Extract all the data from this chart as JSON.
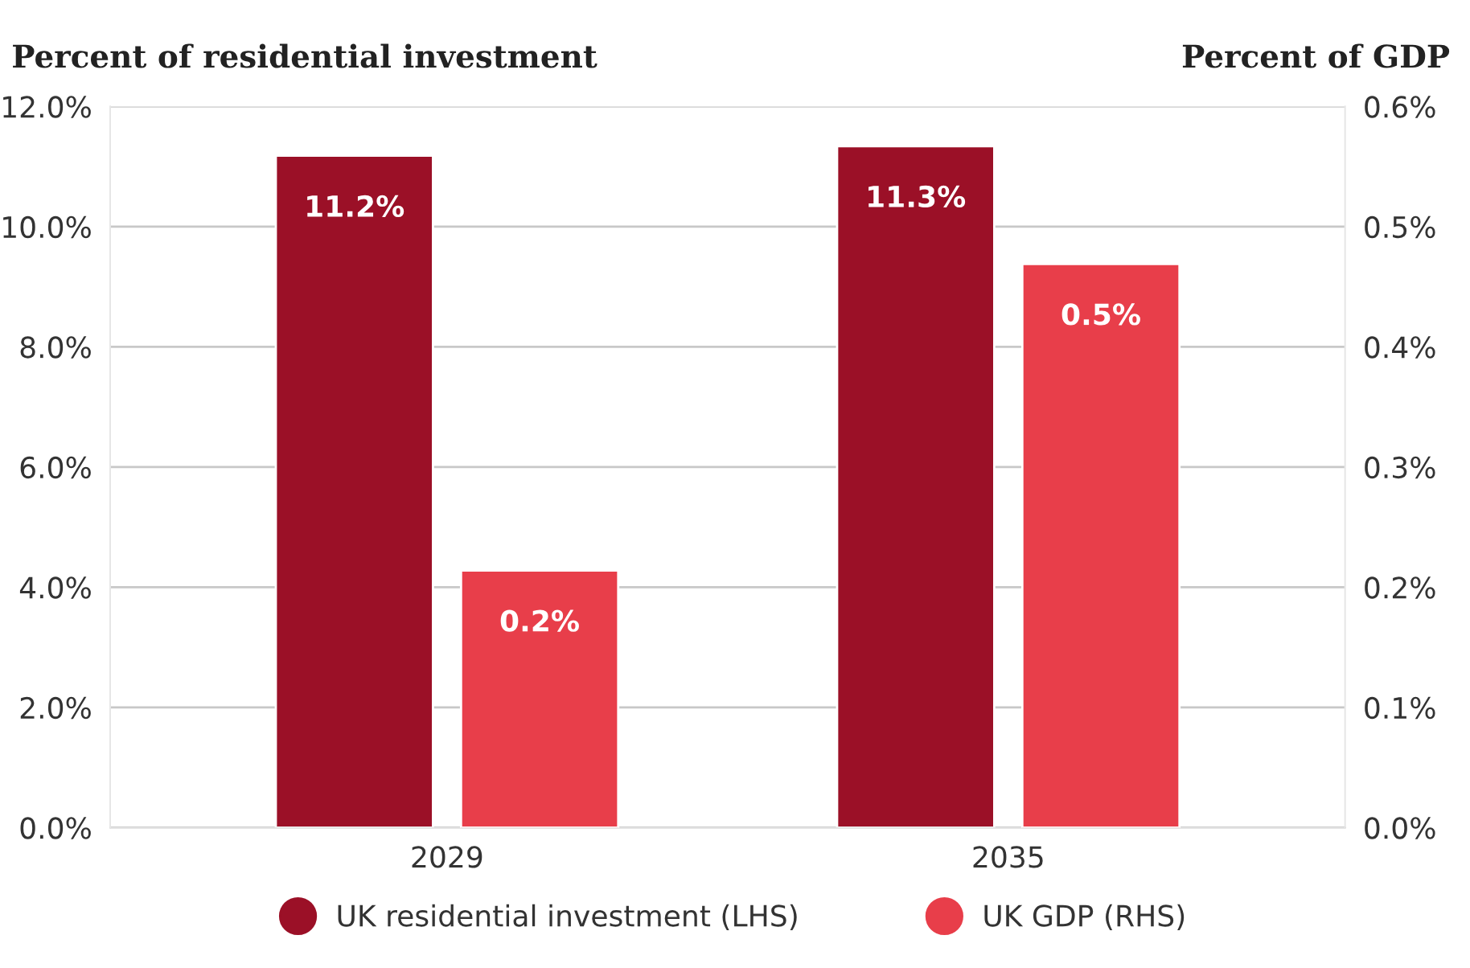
{
  "chart_data": {
    "type": "bar",
    "categories": [
      "2029",
      "2035"
    ],
    "ylabel": "Percent of residential investment",
    "y2label": "Percent of GDP",
    "series": [
      {
        "name": "UK residential investment (LHS)",
        "color": "#9b1027",
        "values": [
          11.18,
          11.34
        ],
        "value_labels": [
          "11.2%",
          "11.3%"
        ]
      },
      {
        "name": "UK GDP (RHS)",
        "color": "#e83e4a",
        "values": [
          0.214,
          0.469
        ],
        "value_labels": [
          "0.2%",
          "0.5%"
        ],
        "axis": "y2"
      }
    ],
    "ylim": [
      0,
      12
    ],
    "yticks": [
      {
        "value": 0,
        "label": "0.0%"
      },
      {
        "value": 2,
        "label": "2.0%"
      },
      {
        "value": 4,
        "label": "4.0%"
      },
      {
        "value": 6,
        "label": "6.0%"
      },
      {
        "value": 8,
        "label": "8.0%"
      },
      {
        "value": 10,
        "label": "10.0%"
      },
      {
        "value": 12,
        "label": "12.0%"
      }
    ],
    "y2lim": [
      0,
      0.6
    ],
    "y2ticks": [
      {
        "value": 0,
        "label": "0.0%"
      },
      {
        "value": 0.1,
        "label": "0.1%"
      },
      {
        "value": 0.2,
        "label": "0.2%"
      },
      {
        "value": 0.3,
        "label": "0.3%"
      },
      {
        "value": 0.4,
        "label": "0.4%"
      },
      {
        "value": 0.5,
        "label": "0.5%"
      },
      {
        "value": 0.6,
        "label": "0.6%"
      }
    ],
    "grid": "y",
    "legend": "bottom"
  }
}
